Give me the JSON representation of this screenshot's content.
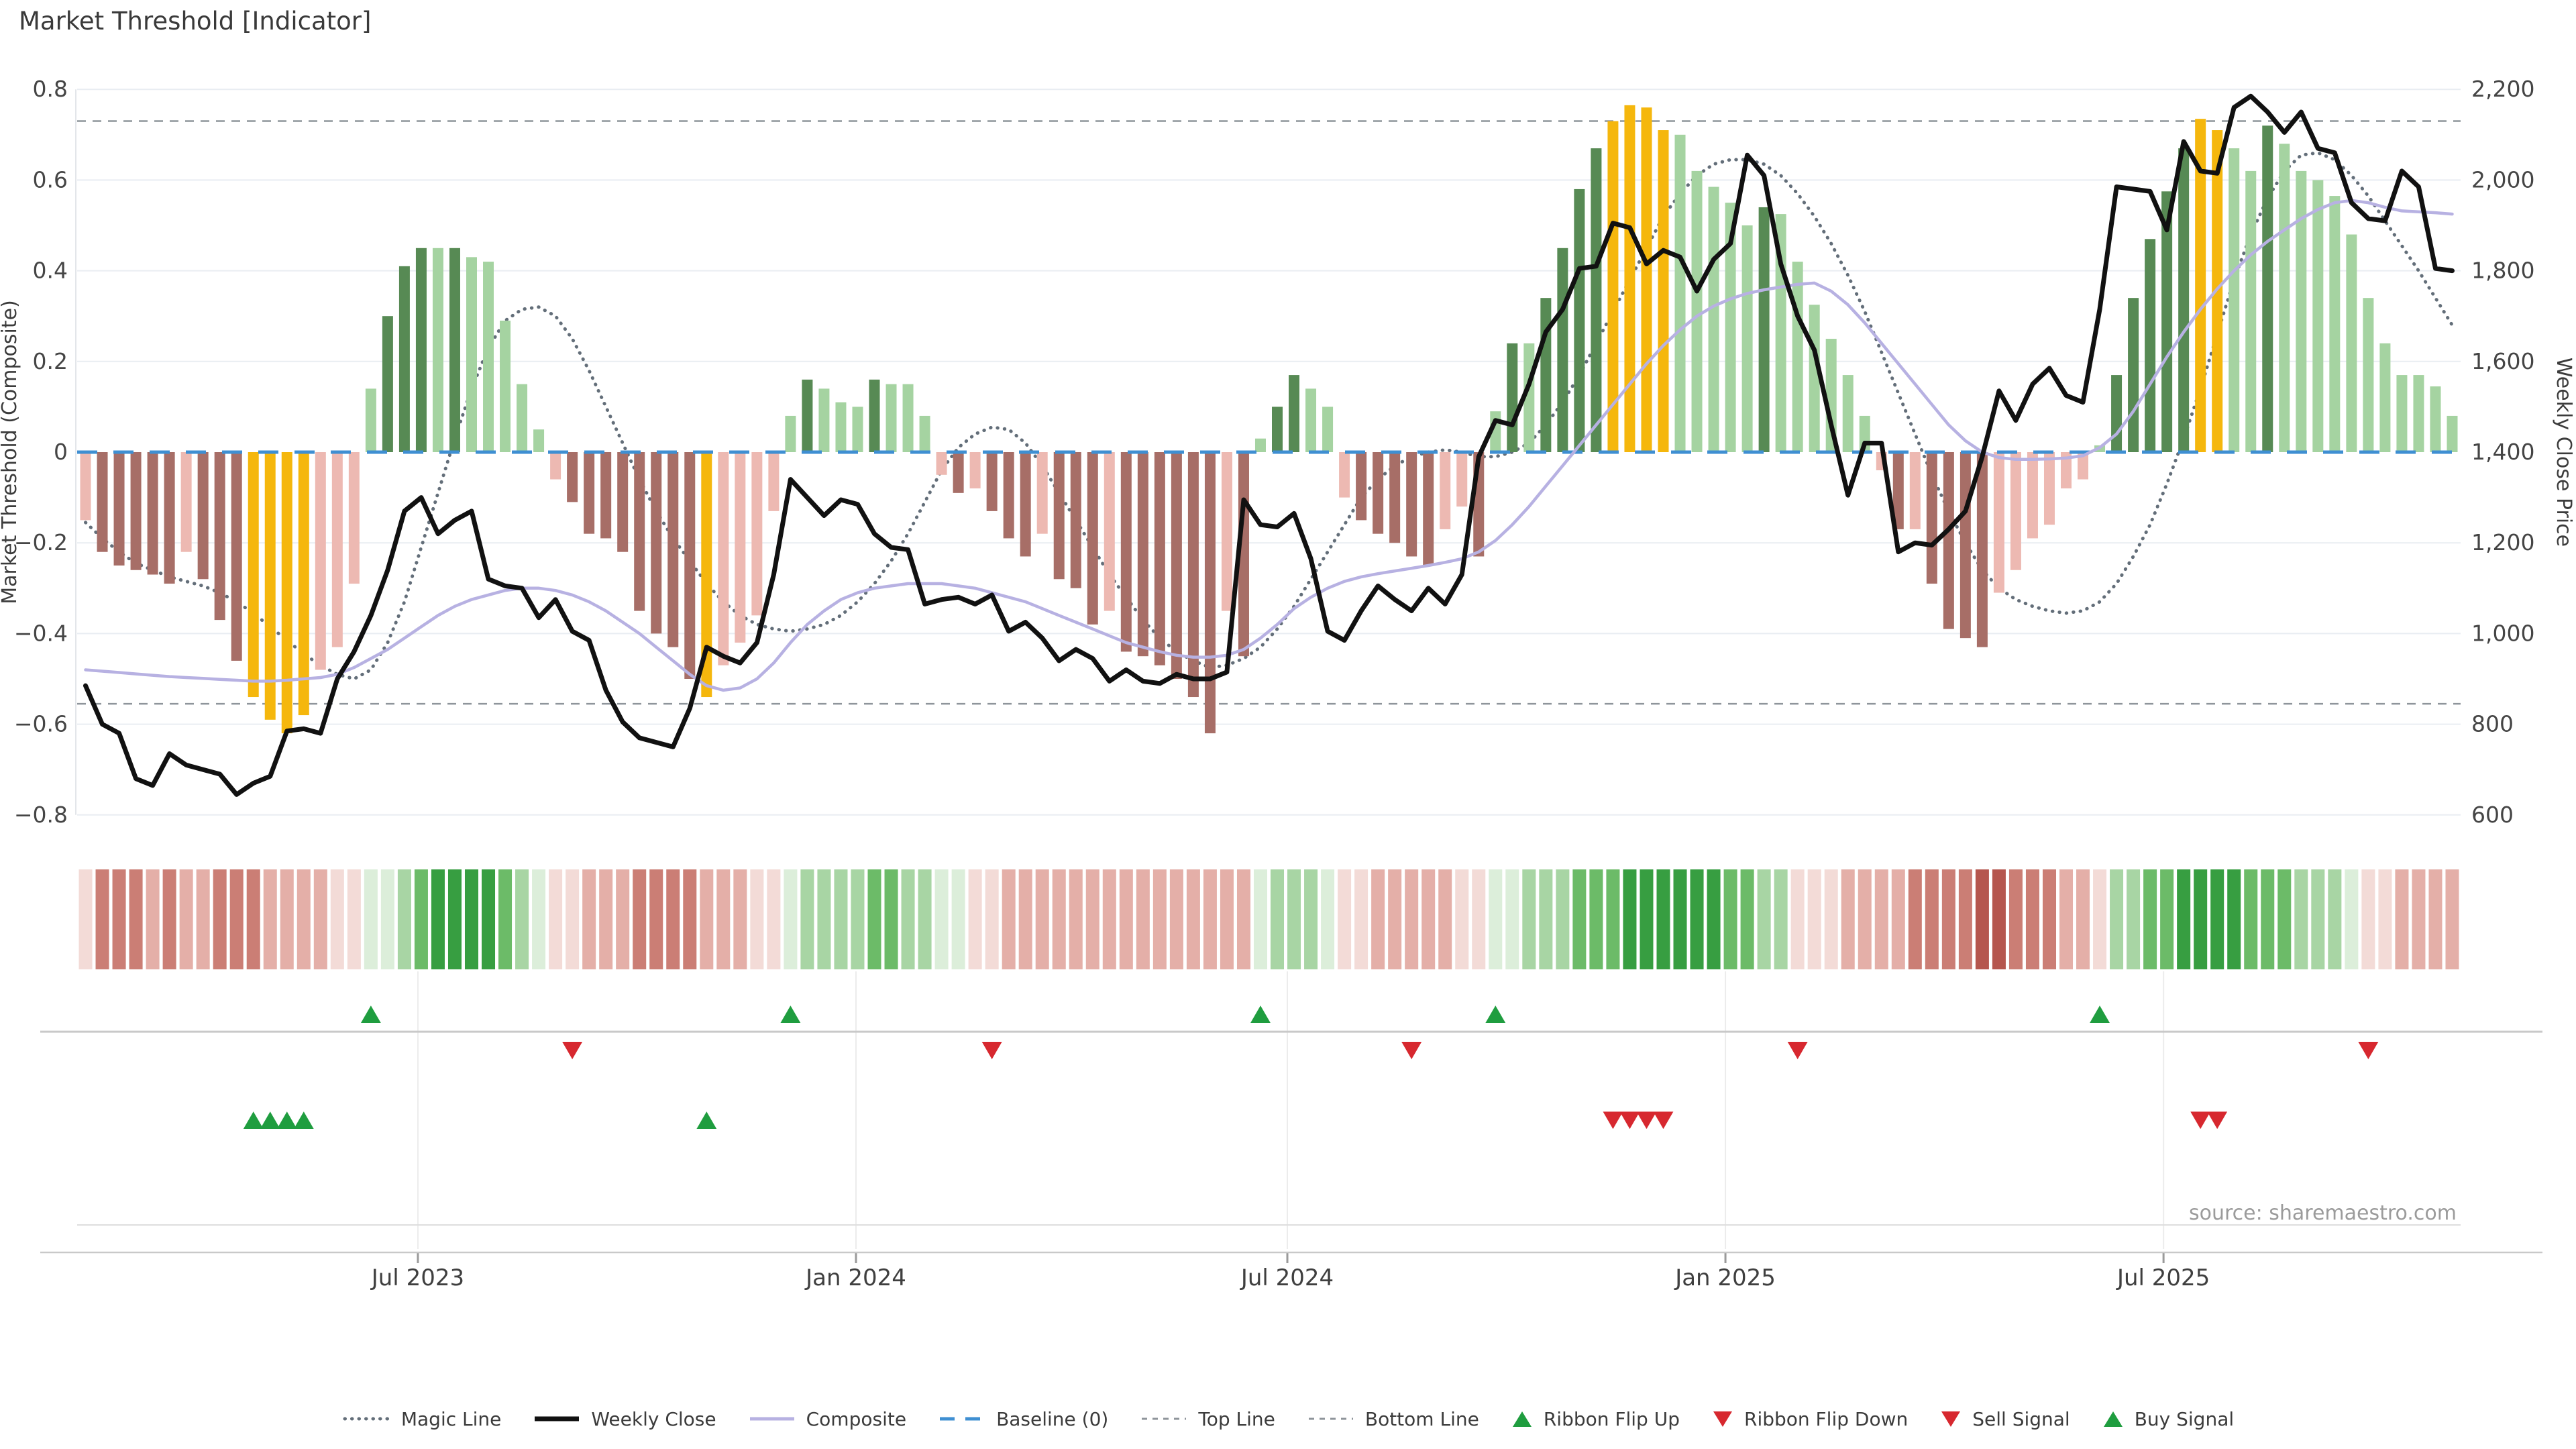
{
  "title": "Market Threshold [Indicator]",
  "source_note": "source: sharemaestro.com",
  "axes": {
    "left_title": "Market Threshold (Composite)",
    "right_title": "Weekly Close Price",
    "left_ticks": [
      {
        "label": "0.8",
        "value": 0.8
      },
      {
        "label": "0.6",
        "value": 0.6
      },
      {
        "label": "0.4",
        "value": 0.4
      },
      {
        "label": "0.2",
        "value": 0.2
      },
      {
        "label": "0",
        "value": 0.0
      },
      {
        "label": "−0.2",
        "value": -0.2
      },
      {
        "label": "−0.4",
        "value": -0.4
      },
      {
        "label": "−0.6",
        "value": -0.6
      },
      {
        "label": "−0.8",
        "value": -0.8
      }
    ],
    "right_ticks": [
      {
        "label": "2,200",
        "value": 2200
      },
      {
        "label": "2,000",
        "value": 2000
      },
      {
        "label": "1,800",
        "value": 1800
      },
      {
        "label": "1,600",
        "value": 1600
      },
      {
        "label": "1,400",
        "value": 1400
      },
      {
        "label": "1,200",
        "value": 1200
      },
      {
        "label": "1,000",
        "value": 1000
      },
      {
        "label": "800",
        "value": 800
      },
      {
        "label": "600",
        "value": 600
      }
    ],
    "x_ticks": [
      {
        "label": "Jul 2023",
        "week": 19.8
      },
      {
        "label": "Jan 2024",
        "week": 45.9
      },
      {
        "label": "Jul 2024",
        "week": 71.6
      },
      {
        "label": "Jan 2025",
        "week": 97.7
      },
      {
        "label": "Jul 2025",
        "week": 123.8
      }
    ]
  },
  "legend": [
    {
      "label": "Magic Line",
      "swatch": "dotted-dark"
    },
    {
      "label": "Weekly Close",
      "swatch": "solid-black"
    },
    {
      "label": "Composite",
      "swatch": "solid-lavender"
    },
    {
      "label": "Baseline (0)",
      "swatch": "dashed-blue"
    },
    {
      "label": "Top Line",
      "swatch": "dotted-gray"
    },
    {
      "label": "Bottom Line",
      "swatch": "dotted-gray"
    },
    {
      "label": "Ribbon Flip Up",
      "swatch": "triangle-up-green"
    },
    {
      "label": "Ribbon Flip Down",
      "swatch": "triangle-down-red"
    },
    {
      "label": "Sell Signal",
      "swatch": "triangle-down-red"
    },
    {
      "label": "Buy Signal",
      "swatch": "triangle-up-green"
    }
  ],
  "colors": {
    "bar_dark_red": "#a76e67",
    "bar_light_red": "#edb9b2",
    "bar_gold": "#f5b70d",
    "bar_dark_green": "#578a54",
    "bar_light_green": "#a5d3a1",
    "weekly_close": "#111111",
    "composite": "#b7b1e2",
    "magic": "#636e79",
    "top_bottom": "#8f959b",
    "baseline": "#3f8fd2",
    "grid": "#e9edf2",
    "signal_green": "#1f9d3f",
    "signal_red": "#d7282f",
    "ribbon_red": [
      "#f3dbd7",
      "#e4afa8",
      "#cb7e75",
      "#b5564e"
    ],
    "ribbon_green": [
      "#dceeda",
      "#a8d5a4",
      "#6cbb68",
      "#379e41"
    ]
  },
  "chart_data": {
    "type": "bar",
    "x_unit": "week",
    "n_weeks": 142,
    "left_axis_range": [
      -0.8,
      0.8
    ],
    "right_axis_range": [
      600,
      2200
    ],
    "reference_lines": {
      "top_line": 0.73,
      "bottom_line": -0.555,
      "baseline": 0.0
    },
    "grid": "horizontal",
    "legend_position": "bottom",
    "series": [
      {
        "name": "Market Threshold Histogram",
        "type": "bar",
        "axis": "left",
        "values": [
          -0.15,
          -0.22,
          -0.25,
          -0.26,
          -0.27,
          -0.29,
          -0.22,
          -0.28,
          -0.37,
          -0.46,
          -0.54,
          -0.59,
          -0.62,
          -0.58,
          -0.48,
          -0.43,
          -0.29,
          0.14,
          0.3,
          0.41,
          0.45,
          0.45,
          0.45,
          0.43,
          0.42,
          0.29,
          0.15,
          0.05,
          -0.06,
          -0.11,
          -0.18,
          -0.19,
          -0.22,
          -0.35,
          -0.4,
          -0.43,
          -0.5,
          -0.54,
          -0.47,
          -0.42,
          -0.36,
          -0.13,
          0.08,
          0.16,
          0.14,
          0.11,
          0.1,
          0.16,
          0.15,
          0.15,
          0.08,
          -0.05,
          -0.09,
          -0.08,
          -0.13,
          -0.19,
          -0.23,
          -0.18,
          -0.28,
          -0.3,
          -0.38,
          -0.35,
          -0.44,
          -0.45,
          -0.47,
          -0.5,
          -0.54,
          -0.62,
          -0.35,
          -0.45,
          0.03,
          0.1,
          0.17,
          0.14,
          0.1,
          -0.1,
          -0.15,
          -0.18,
          -0.2,
          -0.23,
          -0.25,
          -0.17,
          -0.12,
          -0.23,
          0.09,
          0.24,
          0.24,
          0.34,
          0.45,
          0.58,
          0.67,
          0.73,
          0.765,
          0.76,
          0.71,
          0.7,
          0.62,
          0.585,
          0.55,
          0.5,
          0.54,
          0.525,
          0.42,
          0.325,
          0.25,
          0.17,
          0.08,
          -0.04,
          -0.17,
          -0.17,
          -0.29,
          -0.39,
          -0.41,
          -0.43,
          -0.31,
          -0.26,
          -0.19,
          -0.16,
          -0.08,
          -0.06,
          0.015,
          0.17,
          0.34,
          0.47,
          0.575,
          0.67,
          0.735,
          0.71,
          0.67,
          0.62,
          0.72,
          0.68,
          0.62,
          0.6,
          0.565,
          0.48,
          0.34,
          0.24,
          0.17,
          0.17,
          0.145,
          0.08
        ],
        "kinds": "LDDDDDLDDDGGGGLLLLDDDLDLLLLLLDDDDDDDDGLLLLLDLLLDLLLLDLDDDLDDDLDDDDDDLDLDDLLLDDDDDLLDLDLDDDDGGGGLLLLLDLLLLLLLDLDDDDLLLLLLLDDDDDGGLLDLLLLLLLLLLLL",
        "kind_legend": {
          "L": "light",
          "D": "dark",
          "G": "gold-signal"
        }
      },
      {
        "name": "Weekly Close",
        "type": "line",
        "axis": "right",
        "values": [
          885,
          800,
          780,
          680,
          665,
          735,
          710,
          700,
          690,
          645,
          670,
          685,
          785,
          790,
          780,
          900,
          960,
          1040,
          1140,
          1270,
          1300,
          1220,
          1250,
          1270,
          1120,
          1105,
          1100,
          1035,
          1075,
          1005,
          985,
          875,
          805,
          770,
          760,
          750,
          835,
          970,
          950,
          935,
          980,
          1130,
          1340,
          1300,
          1260,
          1295,
          1285,
          1220,
          1190,
          1185,
          1065,
          1075,
          1080,
          1065,
          1085,
          1005,
          1025,
          990,
          940,
          965,
          945,
          895,
          920,
          895,
          890,
          910,
          900,
          900,
          915,
          1295,
          1240,
          1235,
          1265,
          1165,
          1005,
          985,
          1050,
          1105,
          1075,
          1050,
          1100,
          1065,
          1130,
          1390,
          1470,
          1460,
          1550,
          1665,
          1715,
          1805,
          1810,
          1905,
          1895,
          1815,
          1845,
          1830,
          1755,
          1825,
          1860,
          2055,
          2010,
          1815,
          1700,
          1625,
          1460,
          1305,
          1420,
          1420,
          1180,
          1200,
          1195,
          1230,
          1270,
          1390,
          1535,
          1470,
          1550,
          1585,
          1525,
          1510,
          1715,
          1985,
          1980,
          1975,
          1890,
          2085,
          2020,
          2015,
          2160,
          2185,
          2150,
          2105,
          2150,
          2070,
          2060,
          1950,
          1915,
          1910,
          2020,
          1985,
          1805,
          1800
        ]
      },
      {
        "name": "Composite",
        "type": "line",
        "axis": "left",
        "values": [
          -0.48,
          -0.483,
          -0.486,
          -0.489,
          -0.492,
          -0.495,
          -0.497,
          -0.499,
          -0.501,
          -0.503,
          -0.505,
          -0.505,
          -0.503,
          -0.5,
          -0.497,
          -0.49,
          -0.475,
          -0.455,
          -0.435,
          -0.41,
          -0.385,
          -0.36,
          -0.34,
          -0.325,
          -0.315,
          -0.305,
          -0.3,
          -0.3,
          -0.305,
          -0.315,
          -0.33,
          -0.35,
          -0.375,
          -0.4,
          -0.43,
          -0.46,
          -0.49,
          -0.515,
          -0.525,
          -0.52,
          -0.5,
          -0.465,
          -0.42,
          -0.38,
          -0.35,
          -0.325,
          -0.31,
          -0.3,
          -0.295,
          -0.29,
          -0.29,
          -0.29,
          -0.295,
          -0.3,
          -0.31,
          -0.32,
          -0.33,
          -0.345,
          -0.36,
          -0.375,
          -0.39,
          -0.405,
          -0.42,
          -0.43,
          -0.44,
          -0.448,
          -0.452,
          -0.452,
          -0.448,
          -0.435,
          -0.41,
          -0.38,
          -0.345,
          -0.32,
          -0.3,
          -0.285,
          -0.275,
          -0.268,
          -0.262,
          -0.256,
          -0.25,
          -0.243,
          -0.235,
          -0.22,
          -0.195,
          -0.16,
          -0.12,
          -0.075,
          -0.03,
          0.015,
          0.06,
          0.105,
          0.15,
          0.195,
          0.235,
          0.27,
          0.3,
          0.322,
          0.338,
          0.35,
          0.358,
          0.364,
          0.37,
          0.373,
          0.355,
          0.325,
          0.285,
          0.24,
          0.195,
          0.15,
          0.105,
          0.06,
          0.025,
          0.0,
          -0.012,
          -0.016,
          -0.016,
          -0.015,
          -0.013,
          -0.008,
          0.01,
          0.04,
          0.09,
          0.15,
          0.21,
          0.265,
          0.315,
          0.36,
          0.4,
          0.435,
          0.465,
          0.49,
          0.515,
          0.535,
          0.55,
          0.555,
          0.55,
          0.54,
          0.532,
          0.53,
          0.528,
          0.525
        ]
      },
      {
        "name": "Magic Line",
        "type": "line",
        "style": "dotted",
        "axis": "left",
        "values": [
          -0.155,
          -0.19,
          -0.22,
          -0.245,
          -0.26,
          -0.275,
          -0.285,
          -0.295,
          -0.31,
          -0.33,
          -0.355,
          -0.385,
          -0.415,
          -0.445,
          -0.47,
          -0.49,
          -0.5,
          -0.48,
          -0.42,
          -0.33,
          -0.21,
          -0.09,
          0.03,
          0.14,
          0.23,
          0.29,
          0.315,
          0.32,
          0.3,
          0.25,
          0.18,
          0.1,
          0.02,
          -0.06,
          -0.13,
          -0.19,
          -0.24,
          -0.29,
          -0.33,
          -0.36,
          -0.38,
          -0.39,
          -0.395,
          -0.39,
          -0.38,
          -0.36,
          -0.33,
          -0.29,
          -0.24,
          -0.18,
          -0.11,
          -0.04,
          0.01,
          0.04,
          0.055,
          0.05,
          0.02,
          -0.03,
          -0.09,
          -0.15,
          -0.21,
          -0.27,
          -0.32,
          -0.37,
          -0.41,
          -0.44,
          -0.46,
          -0.475,
          -0.47,
          -0.455,
          -0.43,
          -0.39,
          -0.34,
          -0.28,
          -0.22,
          -0.16,
          -0.1,
          -0.06,
          -0.03,
          -0.01,
          0.0,
          0.005,
          0.0,
          -0.01,
          -0.01,
          0.0,
          0.02,
          0.06,
          0.11,
          0.17,
          0.24,
          0.31,
          0.38,
          0.45,
          0.52,
          0.57,
          0.61,
          0.635,
          0.645,
          0.645,
          0.635,
          0.61,
          0.57,
          0.52,
          0.46,
          0.39,
          0.31,
          0.22,
          0.13,
          0.04,
          -0.05,
          -0.13,
          -0.2,
          -0.26,
          -0.3,
          -0.325,
          -0.34,
          -0.35,
          -0.355,
          -0.35,
          -0.33,
          -0.29,
          -0.23,
          -0.16,
          -0.07,
          0.03,
          0.14,
          0.26,
          0.38,
          0.48,
          0.56,
          0.62,
          0.655,
          0.66,
          0.645,
          0.61,
          0.565,
          0.51,
          0.455,
          0.4,
          0.34,
          0.28
        ]
      }
    ],
    "ribbon": [
      -1,
      -3,
      -3,
      -3,
      -2,
      -3,
      -2,
      -2,
      -3,
      -3,
      -3,
      -2,
      -2,
      -2,
      -2,
      -1,
      -1,
      1,
      1,
      2,
      3,
      4,
      4,
      4,
      4,
      3,
      2,
      1,
      -1,
      -1,
      -2,
      -2,
      -2,
      -3,
      -3,
      -3,
      -3,
      -2,
      -2,
      -2,
      -1,
      -1,
      1,
      2,
      2,
      2,
      2,
      3,
      3,
      2,
      2,
      1,
      1,
      -1,
      -1,
      -2,
      -2,
      -2,
      -2,
      -2,
      -2,
      -2,
      -2,
      -2,
      -2,
      -2,
      -2,
      -2,
      -2,
      -2,
      1,
      2,
      2,
      2,
      1,
      -1,
      -1,
      -2,
      -2,
      -2,
      -2,
      -2,
      -1,
      -1,
      1,
      1,
      2,
      2,
      2,
      3,
      3,
      3,
      4,
      4,
      4,
      4,
      4,
      4,
      3,
      3,
      2,
      2,
      -1,
      -1,
      -1,
      -2,
      -2,
      -2,
      -2,
      -3,
      -3,
      -3,
      -3,
      -4,
      -4,
      -3,
      -3,
      -3,
      -2,
      -2,
      -1,
      2,
      2,
      3,
      3,
      4,
      4,
      4,
      4,
      3,
      3,
      3,
      2,
      2,
      2,
      1,
      -1,
      -1,
      -2,
      -2,
      -2,
      -2
    ],
    "signals": {
      "ribbon_flip_up_weeks": [
        17,
        42,
        70,
        84,
        120
      ],
      "ribbon_flip_down_weeks": [
        29,
        54,
        79,
        102,
        136
      ],
      "buy_signal_weeks": [
        10,
        11,
        12,
        13,
        37
      ],
      "sell_signal_weeks": [
        91,
        92,
        93,
        94,
        126,
        127
      ]
    }
  }
}
